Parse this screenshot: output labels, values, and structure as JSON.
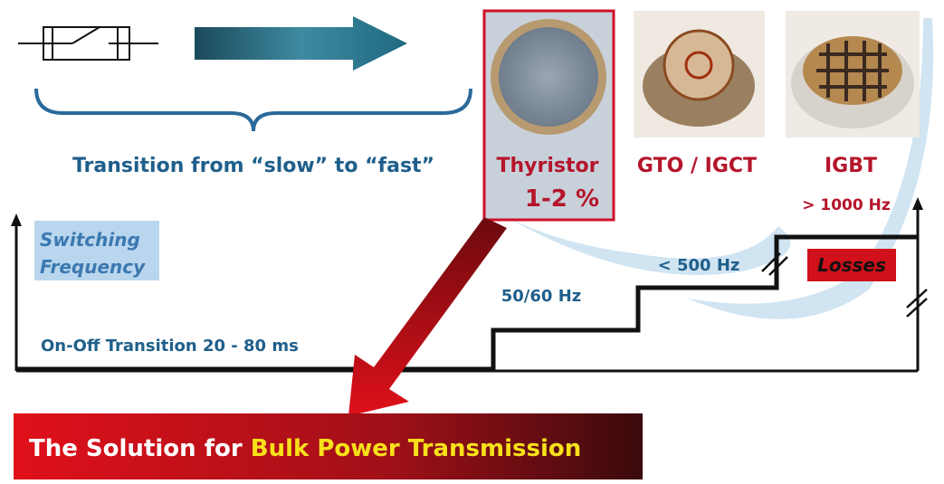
{
  "header": {
    "transition_label": "Transition from “slow” to “fast”"
  },
  "devices": [
    {
      "name": "Thyristor",
      "note": "1-2 %"
    },
    {
      "name": "GTO / IGCT"
    },
    {
      "name": "IGBT",
      "note": "> 1000 Hz"
    }
  ],
  "axis_label": [
    "Switching",
    "Frequency"
  ],
  "levels": {
    "on_off": "On-Off Transition 20 - 80 ms",
    "line_freq": "50/60 Hz",
    "mid_freq": "< 500 Hz"
  },
  "losses_label": "Losses",
  "banner": {
    "prefix": "The Solution for ",
    "highlight": "Bulk Power Transmission"
  }
}
